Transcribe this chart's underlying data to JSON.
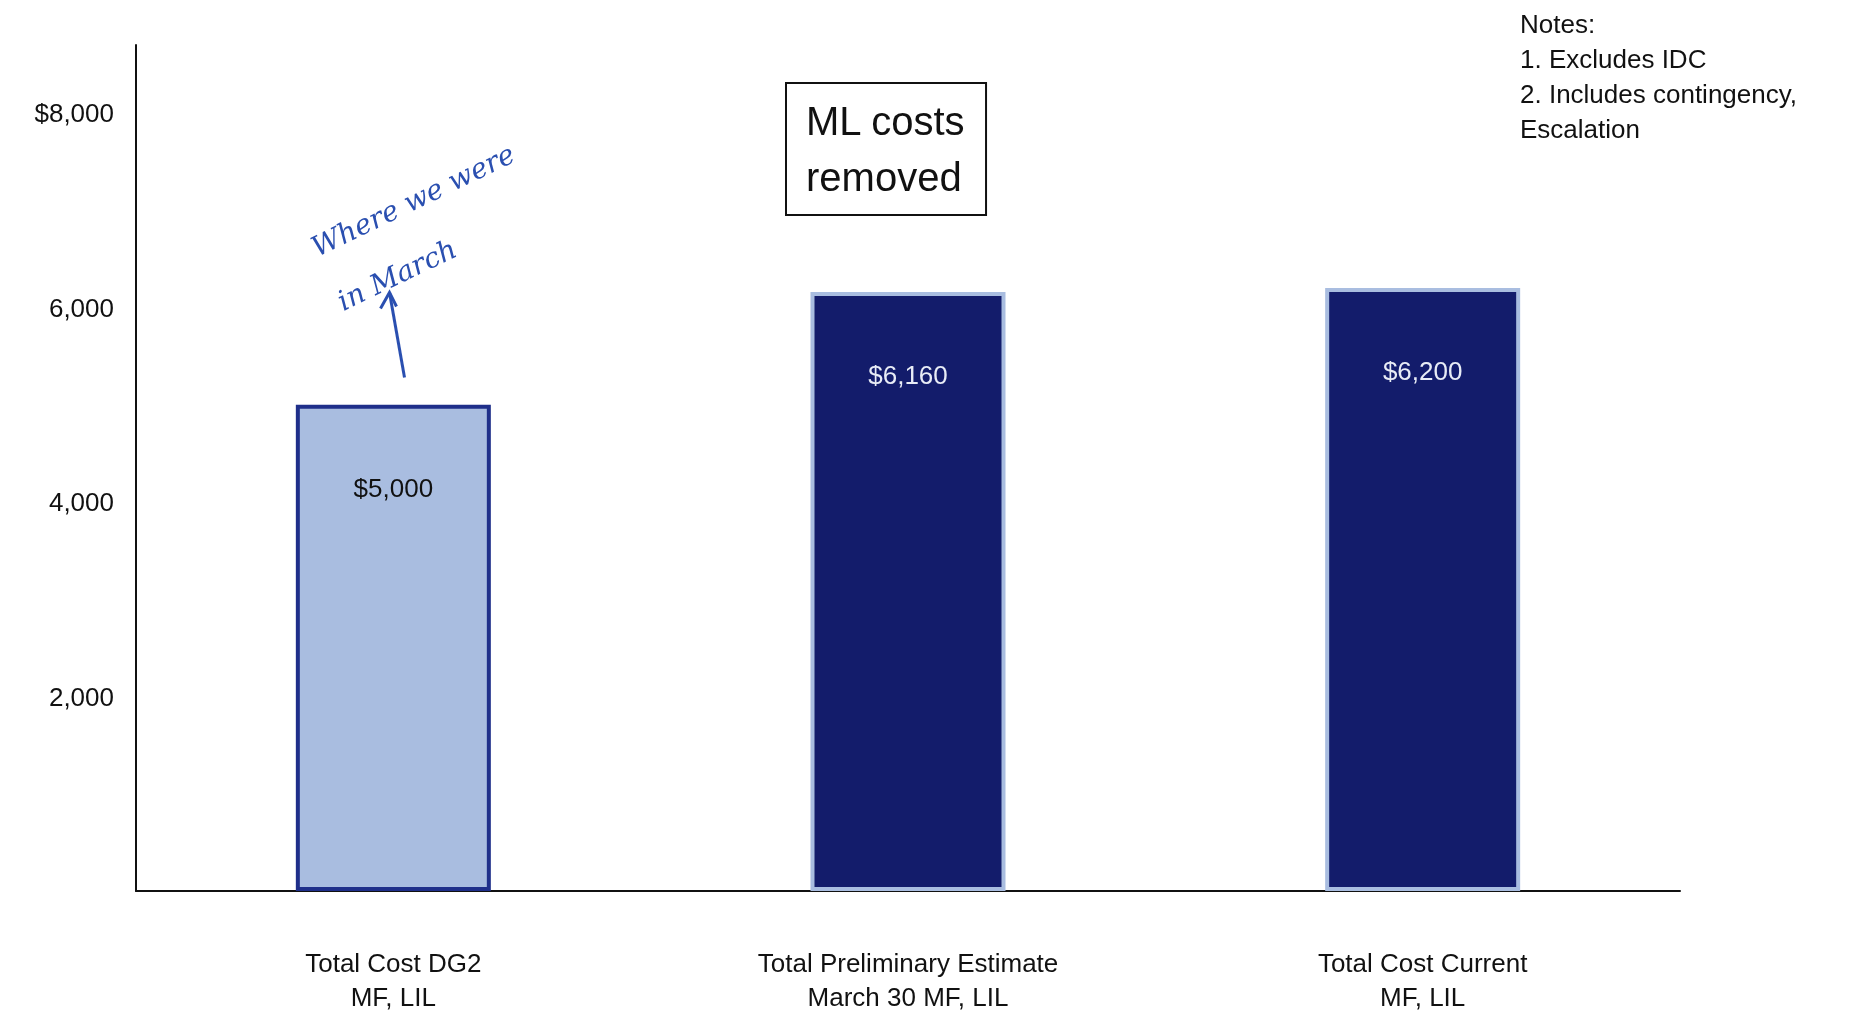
{
  "chart_data": {
    "type": "bar",
    "categories": [
      "Total Cost DG2\nMF, LIL",
      "Total Preliminary Estimate\nMarch 30 MF, LIL",
      "Total Cost Current\nMF, LIL"
    ],
    "values": [
      5000,
      6160,
      6200
    ],
    "colors": [
      "#a9bde0",
      "#131c6b",
      "#131c6b"
    ],
    "value_labels": [
      "$5,000",
      "$6,160",
      "$6,200"
    ],
    "ylim": [
      0,
      8700
    ],
    "yticks": [
      {
        "value": 2000,
        "label": "2,000"
      },
      {
        "value": 4000,
        "label": "4,000"
      },
      {
        "value": 6000,
        "label": "6,000"
      },
      {
        "value": 8000,
        "label": "$8,000"
      }
    ],
    "grid": false,
    "annotations": [
      "ML costs\nremoved",
      "Notes:\n1. Excludes IDC\n2. Includes contingency,\nEscalation",
      "Where we were\nin March"
    ]
  }
}
